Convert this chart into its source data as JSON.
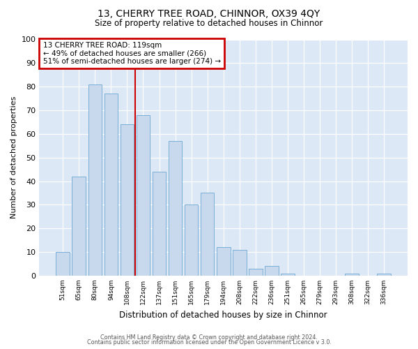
{
  "title": "13, CHERRY TREE ROAD, CHINNOR, OX39 4QY",
  "subtitle": "Size of property relative to detached houses in Chinnor",
  "xlabel": "Distribution of detached houses by size in Chinnor",
  "ylabel": "Number of detached properties",
  "bar_labels": [
    "51sqm",
    "65sqm",
    "80sqm",
    "94sqm",
    "108sqm",
    "122sqm",
    "137sqm",
    "151sqm",
    "165sqm",
    "179sqm",
    "194sqm",
    "208sqm",
    "222sqm",
    "236sqm",
    "251sqm",
    "265sqm",
    "279sqm",
    "293sqm",
    "308sqm",
    "322sqm",
    "336sqm"
  ],
  "bar_values": [
    10,
    42,
    81,
    77,
    64,
    68,
    44,
    57,
    30,
    35,
    12,
    11,
    3,
    4,
    1,
    0,
    0,
    0,
    1,
    0,
    1
  ],
  "bar_color": "#c8d9ee",
  "bar_edge_color": "#7aaed6",
  "ylim": [
    0,
    100
  ],
  "yticks": [
    0,
    10,
    20,
    30,
    40,
    50,
    60,
    70,
    80,
    90,
    100
  ],
  "property_line_color": "#cc0000",
  "property_line_index": 5,
  "annotation_title": "13 CHERRY TREE ROAD: 119sqm",
  "annotation_line1": "← 49% of detached houses are smaller (266)",
  "annotation_line2": "51% of semi-detached houses are larger (274) →",
  "annotation_box_edgecolor": "#cc0000",
  "footnote1": "Contains HM Land Registry data © Crown copyright and database right 2024.",
  "footnote2": "Contains public sector information licensed under the Open Government Licence v 3.0.",
  "fig_bg_color": "#ffffff",
  "plot_bg_color": "#dce8f5"
}
